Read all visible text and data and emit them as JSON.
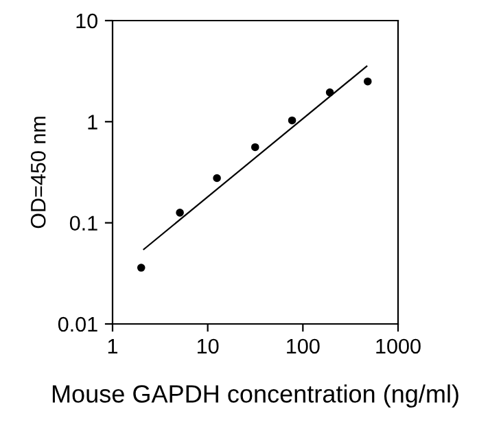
{
  "chart_data": {
    "type": "scatter",
    "xlabel": "Mouse GAPDH concentration (ng/ml)",
    "ylabel": "OD=450 nm",
    "log": "xy",
    "xlim": [
      1,
      1000
    ],
    "ylim": [
      0.01,
      10
    ],
    "xticks": [
      1,
      10,
      100,
      1000
    ],
    "yticks": [
      0.01,
      0.1,
      1,
      10
    ],
    "grid": false,
    "series": [
      {
        "color": "#000000",
        "marker": "circle",
        "x": [
          2,
          5.1,
          12.5,
          31.5,
          77,
          192,
          480
        ],
        "values": [
          0.036,
          0.126,
          0.277,
          0.56,
          1.03,
          1.95,
          2.5
        ]
      },
      {
        "type": "line",
        "color": "#000000",
        "marker": "none",
        "line_style": "solid",
        "x": [
          2.13,
          468
        ],
        "values": [
          0.0547,
          3.53
        ]
      }
    ]
  }
}
